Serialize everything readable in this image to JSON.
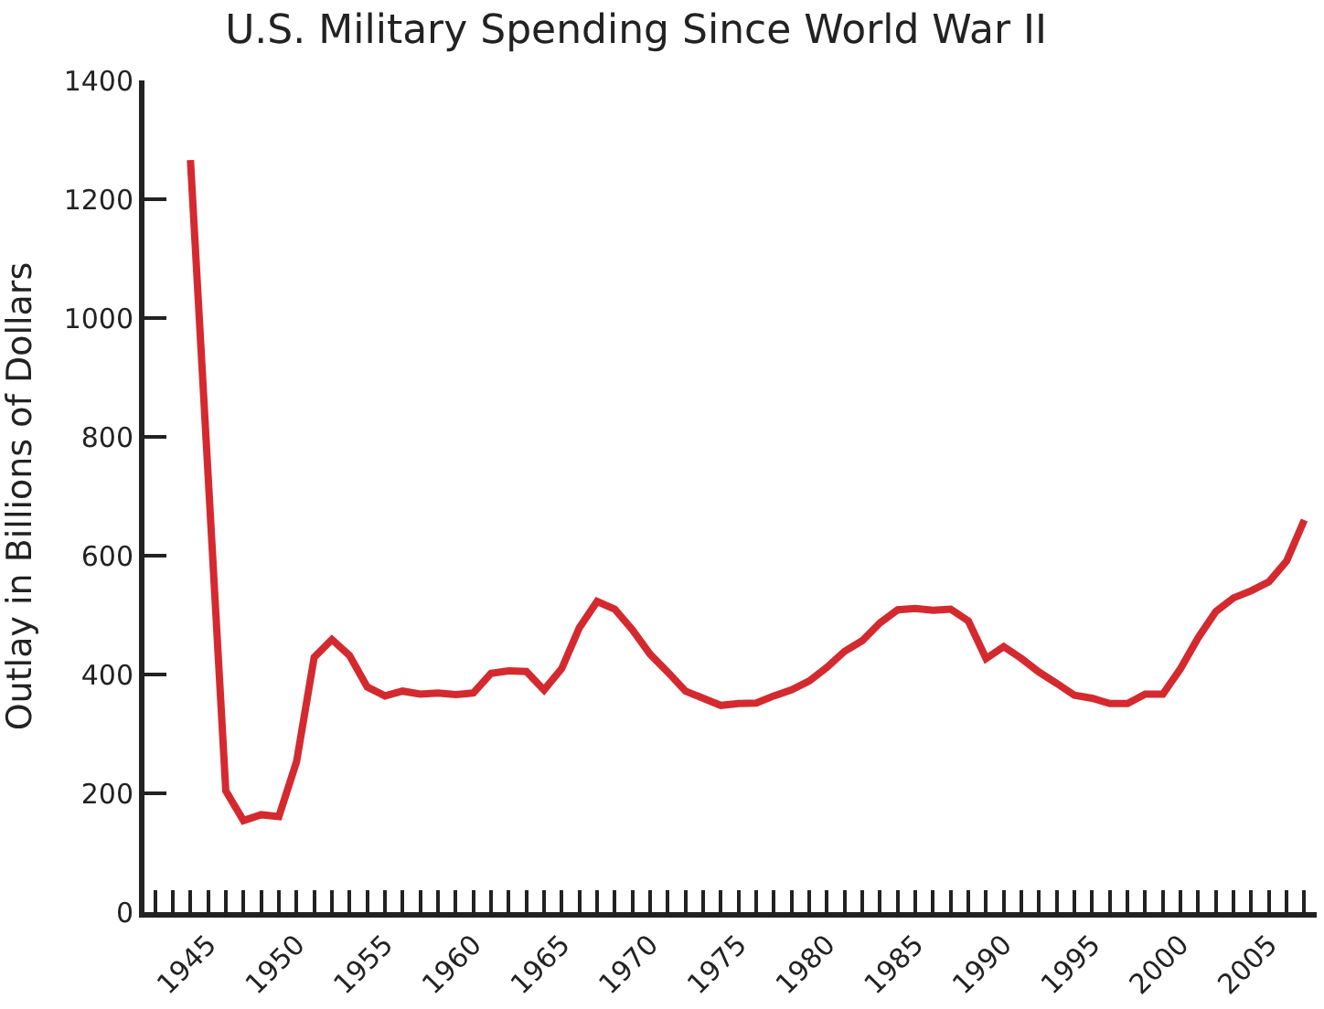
{
  "chart_data": {
    "type": "line",
    "title": "U.S. Military Spending Since World War II",
    "ylabel": "Outlay in Billions of Dollars",
    "x": [
      1944,
      1946,
      1947,
      1948,
      1949,
      1950,
      1951,
      1952,
      1953,
      1954,
      1955,
      1956,
      1957,
      1958,
      1959,
      1960,
      1961,
      1962,
      1963,
      1964,
      1965,
      1966,
      1967,
      1968,
      1969,
      1970,
      1971,
      1972,
      1973,
      1974,
      1975,
      1976,
      1977,
      1978,
      1979,
      1980,
      1981,
      1982,
      1983,
      1984,
      1985,
      1986,
      1987,
      1988,
      1989,
      1990,
      1991,
      1992,
      1993,
      1994,
      1995,
      1996,
      1997,
      1998,
      1999,
      2000,
      2001,
      2002,
      2003,
      2004,
      2005,
      2006,
      2007
    ],
    "series": [
      {
        "color": "#d42a2f",
        "values": [
          1266,
          204,
          154,
          164,
          161,
          253,
          429,
          459,
          432,
          379,
          364,
          372,
          367,
          369,
          366,
          369,
          402,
          406,
          405,
          374,
          410,
          479,
          523,
          510,
          475,
          434,
          404,
          372,
          360,
          348,
          351,
          352,
          364,
          374,
          389,
          412,
          439,
          457,
          487,
          509,
          511,
          508,
          510,
          490,
          427,
          447,
          427,
          404,
          385,
          365,
          360,
          351,
          351,
          367,
          367,
          410,
          462,
          506,
          529,
          541,
          556,
          591,
          660
        ]
      }
    ],
    "xlim": [
      1941.4,
      2007.7
    ],
    "ylim": [
      0,
      1400
    ],
    "yticks": [
      0,
      200,
      400,
      600,
      800,
      1000,
      1200,
      1400
    ],
    "xticks": [
      {
        "value": 1942,
        "label": null
      },
      {
        "value": 1943,
        "label": null
      },
      {
        "value": 1944,
        "label": null
      },
      1945,
      {
        "value": 1946,
        "label": null
      },
      {
        "value": 1947,
        "label": null
      },
      {
        "value": 1948,
        "label": null
      },
      {
        "value": 1949,
        "label": null
      },
      1950,
      {
        "value": 1951,
        "label": null
      },
      {
        "value": 1952,
        "label": null
      },
      {
        "value": 1953,
        "label": null
      },
      {
        "value": 1954,
        "label": null
      },
      1955,
      {
        "value": 1956,
        "label": null
      },
      {
        "value": 1957,
        "label": null
      },
      {
        "value": 1958,
        "label": null
      },
      {
        "value": 1959,
        "label": null
      },
      1960,
      {
        "value": 1961,
        "label": null
      },
      {
        "value": 1962,
        "label": null
      },
      {
        "value": 1963,
        "label": null
      },
      {
        "value": 1964,
        "label": null
      },
      1965,
      {
        "value": 1966,
        "label": null
      },
      {
        "value": 1967,
        "label": null
      },
      {
        "value": 1968,
        "label": null
      },
      {
        "value": 1969,
        "label": null
      },
      1970,
      {
        "value": 1971,
        "label": null
      },
      {
        "value": 1972,
        "label": null
      },
      {
        "value": 1973,
        "label": null
      },
      {
        "value": 1974,
        "label": null
      },
      1975,
      {
        "value": 1976,
        "label": null
      },
      {
        "value": 1977,
        "label": null
      },
      {
        "value": 1978,
        "label": null
      },
      {
        "value": 1979,
        "label": null
      },
      1980,
      {
        "value": 1981,
        "label": null
      },
      {
        "value": 1982,
        "label": null
      },
      {
        "value": 1983,
        "label": null
      },
      {
        "value": 1984,
        "label": null
      },
      1985,
      {
        "value": 1986,
        "label": null
      },
      {
        "value": 1987,
        "label": null
      },
      {
        "value": 1988,
        "label": null
      },
      {
        "value": 1989,
        "label": null
      },
      1990,
      {
        "value": 1991,
        "label": null
      },
      {
        "value": 1992,
        "label": null
      },
      {
        "value": 1993,
        "label": null
      },
      {
        "value": 1994,
        "label": null
      },
      1995,
      {
        "value": 1996,
        "label": null
      },
      {
        "value": 1997,
        "label": null
      },
      {
        "value": 1998,
        "label": null
      },
      {
        "value": 1999,
        "label": null
      },
      2000,
      {
        "value": 2001,
        "label": null
      },
      {
        "value": 2002,
        "label": null
      },
      {
        "value": 2003,
        "label": null
      },
      {
        "value": 2004,
        "label": null
      },
      2005,
      {
        "value": 2006,
        "label": null
      },
      {
        "value": 2007,
        "label": null
      }
    ],
    "marker": "none",
    "line_style": "solid"
  }
}
